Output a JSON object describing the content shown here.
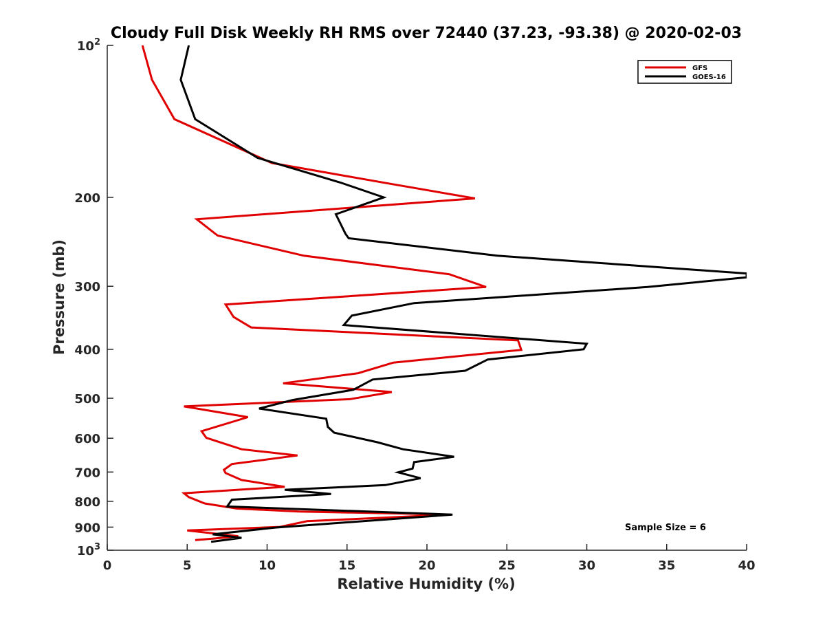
{
  "chart_data": {
    "type": "line",
    "title": "Cloudy Full Disk Weekly RH RMS over 72440 (37.23, -93.38) @ 2020-02-03",
    "xlabel": "Relative Humidity (%)",
    "ylabel": "Pressure (mb)",
    "xlim": [
      0,
      40
    ],
    "ylim": [
      100,
      1000
    ],
    "y_scale": "log",
    "y_reversed": true,
    "grid": false,
    "legend_position": "top-right",
    "x_ticks": [
      0,
      5,
      10,
      15,
      20,
      25,
      30,
      35,
      40
    ],
    "y_ticks": [
      {
        "value": 100,
        "base": "10",
        "exp": "2"
      },
      {
        "value": 200,
        "label": "200"
      },
      {
        "value": 300,
        "label": "300"
      },
      {
        "value": 400,
        "label": "400"
      },
      {
        "value": 500,
        "label": "500"
      },
      {
        "value": 600,
        "label": "600"
      },
      {
        "value": 700,
        "label": "700"
      },
      {
        "value": 800,
        "label": "800"
      },
      {
        "value": 900,
        "label": "900"
      },
      {
        "value": 1000,
        "base": "10",
        "exp": "3"
      }
    ],
    "annotation": "Sample Size = 6",
    "series": [
      {
        "name": "GFS",
        "color": "#e00000",
        "points": [
          [
            2.2,
            100
          ],
          [
            2.8,
            117
          ],
          [
            4.2,
            140
          ],
          [
            10.3,
            171
          ],
          [
            17.7,
            188
          ],
          [
            23.0,
            201
          ],
          [
            5.6,
            221
          ],
          [
            6.9,
            238
          ],
          [
            12.3,
            261
          ],
          [
            21.4,
            284
          ],
          [
            23.7,
            301
          ],
          [
            7.4,
            326
          ],
          [
            7.9,
            345
          ],
          [
            9.0,
            362
          ],
          [
            25.7,
            384
          ],
          [
            25.9,
            401
          ],
          [
            17.9,
            425
          ],
          [
            15.7,
            446
          ],
          [
            11.0,
            467
          ],
          [
            17.8,
            486
          ],
          [
            15.2,
            502
          ],
          [
            4.8,
            519
          ],
          [
            8.8,
            545
          ],
          [
            5.9,
            581
          ],
          [
            6.2,
            599
          ],
          [
            8.4,
            631
          ],
          [
            11.9,
            649
          ],
          [
            7.8,
            675
          ],
          [
            7.3,
            693
          ],
          [
            7.4,
            703
          ],
          [
            8.4,
            726
          ],
          [
            11.1,
            749
          ],
          [
            4.8,
            771
          ],
          [
            5.1,
            785
          ],
          [
            6.1,
            808
          ],
          [
            8.1,
            827
          ],
          [
            12.0,
            838
          ],
          [
            21.5,
            850
          ],
          [
            12.5,
            876
          ],
          [
            10.8,
            899
          ],
          [
            5.0,
            914
          ],
          [
            8.2,
            938
          ],
          [
            6.7,
            948
          ],
          [
            5.5,
            955
          ]
        ]
      },
      {
        "name": "GOES-16",
        "color": "#000000",
        "points": [
          [
            5.1,
            100
          ],
          [
            4.6,
            117
          ],
          [
            5.5,
            140
          ],
          [
            9.4,
            167
          ],
          [
            14.6,
            187
          ],
          [
            17.3,
            200
          ],
          [
            14.3,
            216
          ],
          [
            14.9,
            236
          ],
          [
            15.1,
            241
          ],
          [
            24.4,
            261
          ],
          [
            40.0,
            283
          ],
          [
            40.0,
            288
          ],
          [
            33.8,
            301
          ],
          [
            19.2,
            324
          ],
          [
            15.3,
            343
          ],
          [
            14.8,
            358
          ],
          [
            30.0,
            390
          ],
          [
            29.8,
            400
          ],
          [
            23.8,
            419
          ],
          [
            22.4,
            441
          ],
          [
            16.6,
            459
          ],
          [
            15.4,
            481
          ],
          [
            11.6,
            504
          ],
          [
            9.5,
            524
          ],
          [
            13.7,
            549
          ],
          [
            13.8,
            570
          ],
          [
            14.2,
            585
          ],
          [
            16.9,
            611
          ],
          [
            18.5,
            631
          ],
          [
            21.7,
            653
          ],
          [
            19.2,
            669
          ],
          [
            19.1,
            689
          ],
          [
            18.2,
            701
          ],
          [
            19.6,
            720
          ],
          [
            17.4,
            743
          ],
          [
            11.1,
            759
          ],
          [
            14.0,
            774
          ],
          [
            7.8,
            794
          ],
          [
            7.5,
            819
          ],
          [
            21.6,
            850
          ],
          [
            10.5,
            902
          ],
          [
            6.6,
            930
          ],
          [
            8.4,
            945
          ],
          [
            6.5,
            962
          ]
        ]
      }
    ]
  }
}
